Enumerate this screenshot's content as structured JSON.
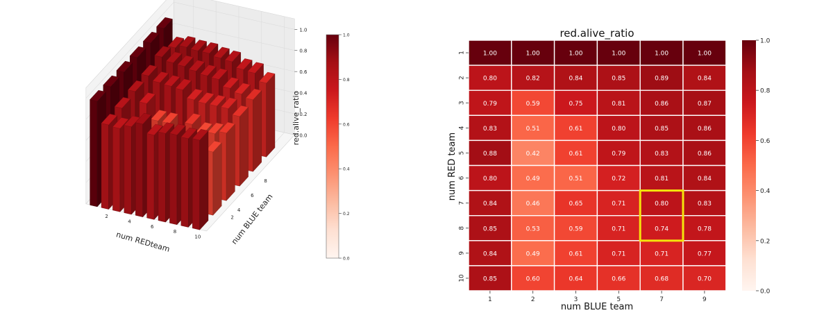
{
  "chart_data": [
    {
      "type": "bar3d",
      "xlabel": "num REDteam",
      "ylabel": "num BLUE team",
      "zlabel": "red.alive_ratio",
      "x_ticks": [
        "2",
        "4",
        "6",
        "8",
        "10"
      ],
      "y_ticks": [
        "2",
        "4",
        "6",
        "8"
      ],
      "z_ticks": [
        "0.0",
        "0.2",
        "0.4",
        "0.6",
        "0.8",
        "1.0"
      ],
      "zlim": [
        0,
        1
      ],
      "colorbar": {
        "ticks": [
          "0.0",
          "0.2",
          "0.4",
          "0.6",
          "0.8",
          "1.0"
        ],
        "range": [
          0,
          1
        ],
        "colormap": "Reds"
      },
      "data_ref": "same grid as heatmap (num RED team x num BLUE team)"
    },
    {
      "type": "heatmap",
      "title": "red.alive_ratio",
      "xlabel": "num BLUE team",
      "ylabel": "num RED team",
      "x_categories": [
        "1",
        "2",
        "3",
        "5",
        "7",
        "9"
      ],
      "y_categories": [
        "1",
        "2",
        "3",
        "4",
        "5",
        "6",
        "7",
        "8",
        "9",
        "10"
      ],
      "values": [
        [
          1.0,
          1.0,
          1.0,
          1.0,
          1.0,
          1.0
        ],
        [
          0.8,
          0.82,
          0.84,
          0.85,
          0.89,
          0.84
        ],
        [
          0.79,
          0.59,
          0.75,
          0.81,
          0.86,
          0.87
        ],
        [
          0.83,
          0.51,
          0.61,
          0.8,
          0.85,
          0.86
        ],
        [
          0.88,
          0.42,
          0.61,
          0.79,
          0.83,
          0.86
        ],
        [
          0.8,
          0.49,
          0.51,
          0.72,
          0.81,
          0.84
        ],
        [
          0.84,
          0.46,
          0.65,
          0.71,
          0.8,
          0.83
        ],
        [
          0.85,
          0.53,
          0.59,
          0.71,
          0.74,
          0.78
        ],
        [
          0.84,
          0.49,
          0.61,
          0.71,
          0.71,
          0.77
        ],
        [
          0.85,
          0.6,
          0.64,
          0.66,
          0.68,
          0.7
        ]
      ],
      "value_format": "2dp",
      "highlight": {
        "rows": [
          "7",
          "8"
        ],
        "col": "7",
        "color": "#f5e50c"
      },
      "colorbar": {
        "ticks": [
          "0.0",
          "0.2",
          "0.4",
          "0.6",
          "0.8",
          "1.0"
        ],
        "range": [
          0,
          1
        ],
        "colormap": "Reds"
      },
      "grid": true
    }
  ]
}
